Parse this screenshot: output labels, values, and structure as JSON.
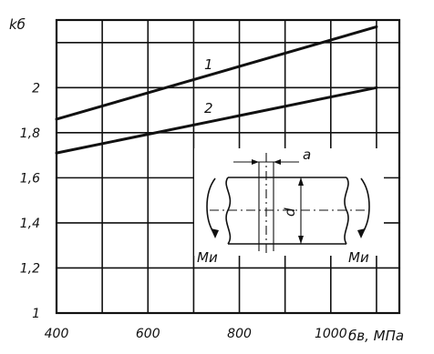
{
  "chart_data": {
    "type": "line",
    "ylabel": "kб",
    "xlabel": "бв, МПа",
    "x_ticks": [
      "400",
      "600",
      "800",
      "1000"
    ],
    "y_ticks": [
      "1",
      "1,2",
      "1,4",
      "1,6",
      "1,8",
      "2"
    ],
    "xlim": [
      400,
      1150
    ],
    "ylim": [
      1,
      2.3
    ],
    "grid": true,
    "series": [
      {
        "name": "1",
        "x": [
          400,
          1100
        ],
        "y": [
          1.86,
          2.27
        ]
      },
      {
        "name": "2",
        "x": [
          400,
          1100
        ],
        "y": [
          1.71,
          2.0
        ]
      }
    ],
    "inset": {
      "dimension_a": "a",
      "dimension_d": "d",
      "moment_left": "Mи",
      "moment_right": "Mи"
    }
  }
}
